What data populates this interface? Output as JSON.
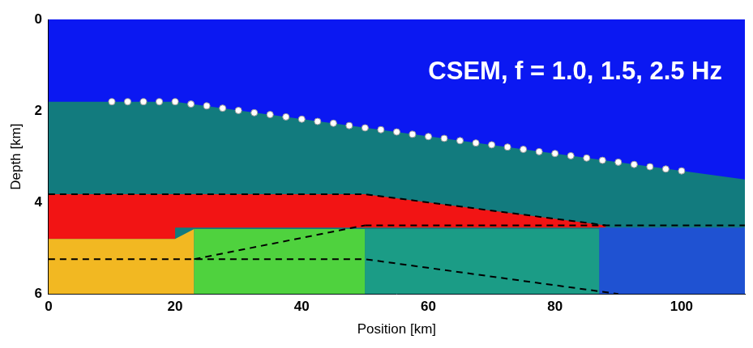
{
  "chart_data": {
    "type": "scatter",
    "annotation": "CSEM, f = 1.0, 1.5, 2.5 Hz",
    "x_label": "Position [km]",
    "y_label": "Depth [km]",
    "xlim": [
      0,
      110
    ],
    "xticks": [
      0,
      20,
      40,
      60,
      80,
      100
    ],
    "ylim": [
      6,
      0
    ],
    "yticks": [
      0,
      2,
      4,
      6
    ],
    "grid": false,
    "series": [
      {
        "type": "area",
        "color": "#0b18f2",
        "values": [
          [
            0,
            0
          ],
          [
            110,
            0
          ],
          [
            110,
            6
          ],
          [
            0,
            6
          ]
        ]
      },
      {
        "type": "area",
        "color": "#127b7e",
        "values": [
          [
            0,
            1.8
          ],
          [
            20,
            1.8
          ],
          [
            110,
            3.5
          ],
          [
            110,
            6
          ],
          [
            0,
            6
          ]
        ]
      },
      {
        "type": "area",
        "color": "#f21414",
        "values": [
          [
            0,
            3.82
          ],
          [
            50,
            3.82
          ],
          [
            88,
            4.5
          ],
          [
            88,
            4.55
          ],
          [
            20,
            4.55
          ],
          [
            20,
            4.8
          ],
          [
            0,
            4.8
          ]
        ]
      },
      {
        "type": "area",
        "color": "#f2b822",
        "values": [
          [
            0,
            4.8
          ],
          [
            20,
            4.8
          ],
          [
            23,
            4.58
          ],
          [
            23,
            6
          ],
          [
            0,
            6
          ]
        ]
      },
      {
        "type": "area",
        "color": "#4fd23e",
        "values": [
          [
            23,
            4.58
          ],
          [
            50,
            4.58
          ],
          [
            50,
            6
          ],
          [
            23,
            6
          ]
        ]
      },
      {
        "type": "area",
        "color": "#1b9c86",
        "values": [
          [
            50,
            4.58
          ],
          [
            87,
            4.58
          ],
          [
            87,
            6
          ],
          [
            50,
            6
          ]
        ]
      },
      {
        "type": "area",
        "color": "#1f52d2",
        "values": [
          [
            87,
            4.55
          ],
          [
            110,
            4.55
          ],
          [
            110,
            6
          ],
          [
            87,
            6
          ]
        ]
      },
      {
        "type": "line",
        "line_style": "dashed",
        "color": "#000000",
        "values": [
          [
            0,
            3.82
          ],
          [
            50,
            3.82
          ],
          [
            88,
            4.5
          ]
        ]
      },
      {
        "type": "line",
        "line_style": "dashed",
        "color": "#000000",
        "values": [
          [
            50,
            4.5
          ],
          [
            110,
            4.5
          ]
        ]
      },
      {
        "type": "line",
        "line_style": "dashed",
        "color": "#000000",
        "values": [
          [
            23,
            5.24
          ],
          [
            50,
            4.5
          ]
        ]
      },
      {
        "type": "line",
        "line_style": "dashed",
        "color": "#000000",
        "values": [
          [
            0,
            5.24
          ],
          [
            50,
            5.24
          ],
          [
            90,
            6
          ]
        ]
      },
      {
        "type": "scatter",
        "marker": "circle",
        "color": "#ffffff",
        "values": [
          [
            10,
            1.8
          ],
          [
            12.5,
            1.8
          ],
          [
            15,
            1.8
          ],
          [
            17.5,
            1.8
          ],
          [
            20,
            1.8
          ],
          [
            22.5,
            1.85
          ],
          [
            25,
            1.89
          ],
          [
            27.5,
            1.94
          ],
          [
            30,
            1.99
          ],
          [
            32.5,
            2.04
          ],
          [
            35,
            2.08
          ],
          [
            37.5,
            2.13
          ],
          [
            40,
            2.18
          ],
          [
            42.5,
            2.23
          ],
          [
            45,
            2.27
          ],
          [
            47.5,
            2.32
          ],
          [
            50,
            2.37
          ],
          [
            52.5,
            2.41
          ],
          [
            55,
            2.46
          ],
          [
            57.5,
            2.51
          ],
          [
            60,
            2.56
          ],
          [
            62.5,
            2.6
          ],
          [
            65,
            2.65
          ],
          [
            67.5,
            2.7
          ],
          [
            70,
            2.74
          ],
          [
            72.5,
            2.79
          ],
          [
            75,
            2.84
          ],
          [
            77.5,
            2.89
          ],
          [
            80,
            2.93
          ],
          [
            82.5,
            2.98
          ],
          [
            85,
            3.03
          ],
          [
            87.5,
            3.08
          ],
          [
            90,
            3.12
          ],
          [
            92.5,
            3.17
          ],
          [
            95,
            3.22
          ],
          [
            97.5,
            3.27
          ],
          [
            100,
            3.31
          ]
        ]
      }
    ]
  }
}
